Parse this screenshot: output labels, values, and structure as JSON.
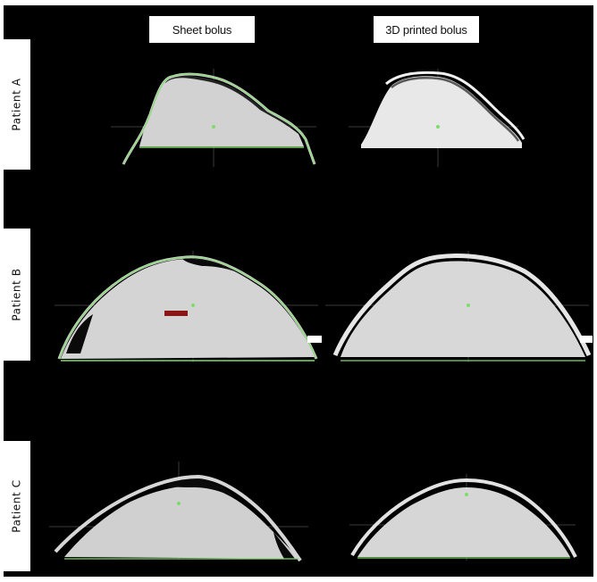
{
  "figure": {
    "columns": [
      {
        "label": "Sheet bolus"
      },
      {
        "label": "3D printed bolus"
      }
    ],
    "rows": [
      {
        "label": "Patient A"
      },
      {
        "label": "Patient B"
      },
      {
        "label": "Patient C"
      }
    ]
  },
  "colors": {
    "background": "#000000",
    "tissue": "#d4d4d4",
    "bolus_sheet": "#cfcfcf",
    "bolus_3d": "#e6e6e6",
    "contour": "#7fdc6a",
    "crosshair": "#3a3a3a",
    "marker_red": "#8b1414"
  }
}
